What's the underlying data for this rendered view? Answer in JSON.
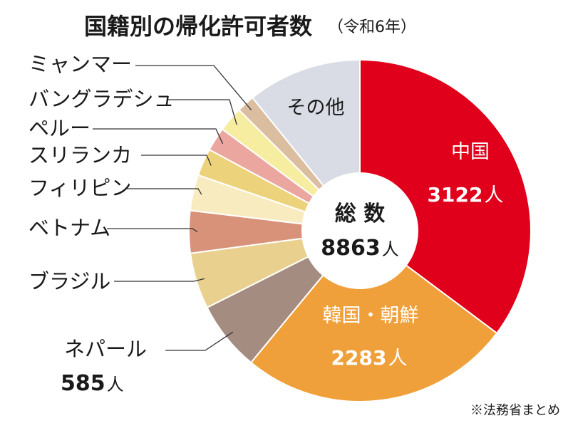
{
  "title": "国籍別の帰化許可者数",
  "subtitle": "（令和6年）",
  "source": "※法務省まとめ",
  "total": {
    "label": "総 数",
    "value": "8863",
    "unit": "人"
  },
  "chart_data": {
    "type": "pie",
    "title": "国籍別の帰化許可者数（令和6年）",
    "total": 8863,
    "unit": "人",
    "slices": [
      {
        "name": "中国",
        "value": 3122,
        "value_label": "3122",
        "color": "#e0001b"
      },
      {
        "name": "韓国・朝鮮",
        "value": 2283,
        "value_label": "2283",
        "color": "#f0a03a"
      },
      {
        "name": "ネパール",
        "value": 585,
        "value_label": "585",
        "color": "#a58c80"
      },
      {
        "name": "ブラジル",
        "value": 470,
        "color": "#e9d08f"
      },
      {
        "name": "ベトナム",
        "value": 355,
        "color": "#d8927a"
      },
      {
        "name": "フィリピン",
        "value": 300,
        "color": "#f9ebc0"
      },
      {
        "name": "スリランカ",
        "value": 230,
        "color": "#ecd27a"
      },
      {
        "name": "ペルー",
        "value": 200,
        "color": "#eba6a0"
      },
      {
        "name": "バングラデシュ",
        "value": 210,
        "color": "#f6eda0"
      },
      {
        "name": "ミャンマー",
        "value": 150,
        "color": "#dbbd9f"
      },
      {
        "name": "その他",
        "value": 958,
        "color": "#d9dce4"
      }
    ]
  }
}
